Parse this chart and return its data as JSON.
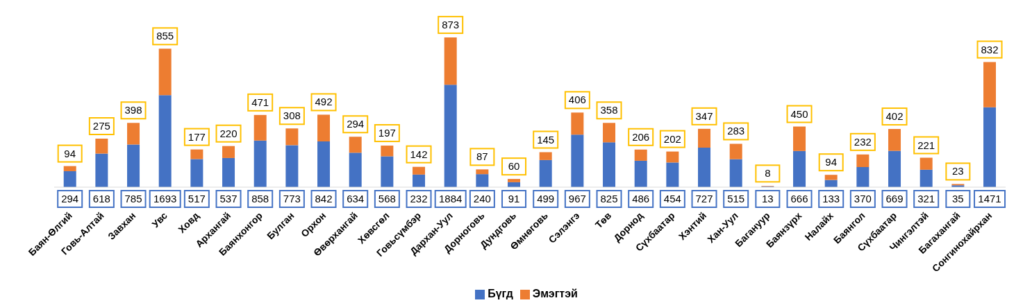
{
  "chart_data": {
    "type": "bar",
    "stacked": true,
    "data_labels": true,
    "legend": "bottom",
    "grid": false,
    "categories": [
      "Баян-Өлгий",
      "Говь-Алтай",
      "Завхан",
      "Увс",
      "Ховд",
      "Архангай",
      "Баянхонгор",
      "Булган",
      "Орхон",
      "Өвөрхангай",
      "Хөвсгөл",
      "Говьсүмбэр",
      "Дархан-Уул",
      "Дорноговь",
      "Дундговь",
      "Өмнөговь",
      "Сэлэнгэ",
      "Төв",
      "Дорнод",
      "Сүхбаатар",
      "Хэнтий",
      "Хан-Уул",
      "Багануур",
      "Баянзүрх",
      "Налайх",
      "Баянгол",
      "Сүхбаатар",
      "Чингэлтэй",
      "Багахангай",
      "Сонгинохайрхан"
    ],
    "series": [
      {
        "name": "Бүгд",
        "color": "#4472c4",
        "values": [
          294,
          618,
          785,
          1693,
          517,
          537,
          858,
          773,
          842,
          634,
          568,
          232,
          1884,
          240,
          91,
          499,
          967,
          825,
          486,
          454,
          727,
          515,
          13,
          666,
          133,
          370,
          669,
          321,
          35,
          1471
        ]
      },
      {
        "name": "Эмэгтэй",
        "color": "#ed7d31",
        "values": [
          94,
          275,
          398,
          855,
          177,
          220,
          471,
          308,
          492,
          294,
          197,
          142,
          873,
          87,
          60,
          145,
          406,
          358,
          206,
          202,
          347,
          283,
          8,
          450,
          94,
          232,
          402,
          221,
          23,
          832
        ]
      }
    ]
  }
}
